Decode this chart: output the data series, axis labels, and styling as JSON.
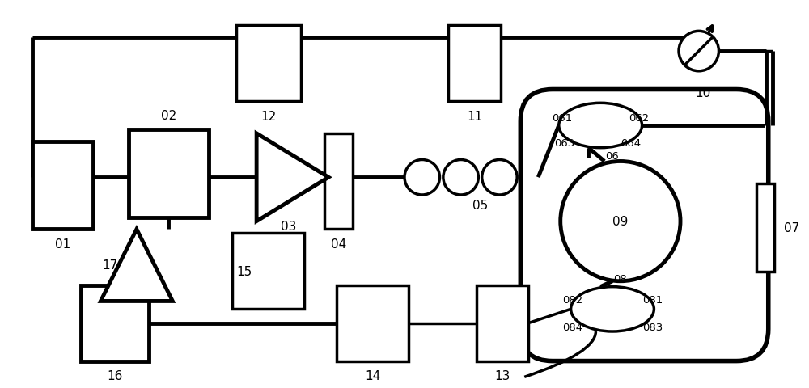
{
  "bg_color": "#ffffff",
  "line_color": "#000000",
  "lw": 2.5,
  "tlw": 3.5,
  "fig_w": 10.0,
  "fig_h": 4.81
}
